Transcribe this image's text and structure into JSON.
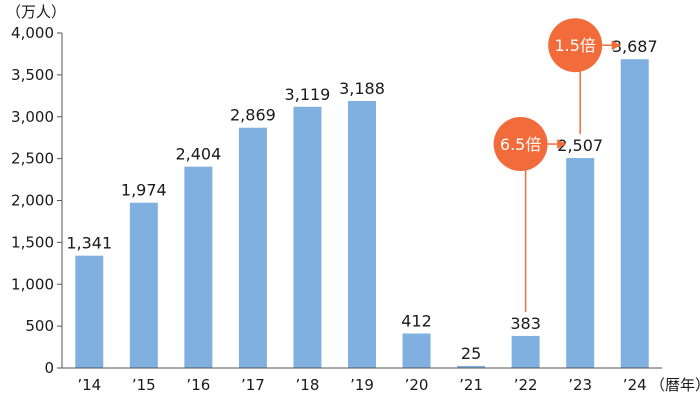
{
  "chart_data": {
    "type": "bar",
    "y_unit": "（万人）",
    "x_unit": "（暦年）",
    "categories": [
      "’14",
      "’15",
      "’16",
      "’17",
      "’18",
      "’19",
      "’20",
      "’21",
      "’22",
      "’23",
      "’24"
    ],
    "values": [
      1341,
      1974,
      2404,
      2869,
      3119,
      3188,
      412,
      25,
      383,
      2507,
      3687
    ],
    "value_labels": [
      "1,341",
      "1,974",
      "2,404",
      "2,869",
      "3,119",
      "3,188",
      "412",
      "25",
      "383",
      "2,507",
      "3,687"
    ],
    "ylim": [
      0,
      4000
    ],
    "yticks": [
      0,
      500,
      1000,
      1500,
      2000,
      2500,
      3000,
      3500,
      4000
    ],
    "ytick_labels": [
      "0",
      "500",
      "1,000",
      "1,500",
      "2,000",
      "2,500",
      "3,000",
      "3,500",
      "4,000"
    ],
    "grid": false,
    "bar_color": "#7fb0e0",
    "annotations": [
      {
        "text": "6.5倍",
        "from_category": "’22",
        "to_category": "’23"
      },
      {
        "text": "1.5倍",
        "from_category": "’23",
        "to_category": "’24"
      }
    ],
    "annotation_color": "#f26b3a"
  }
}
